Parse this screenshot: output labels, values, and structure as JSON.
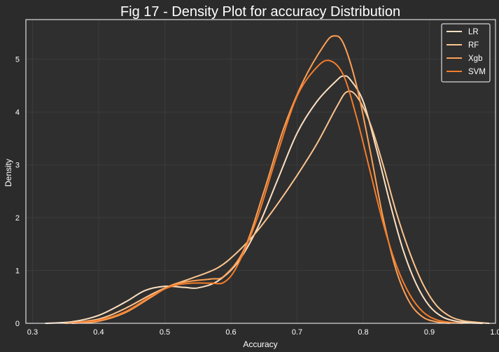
{
  "chart_data": {
    "type": "line",
    "title": "Fig 17 - Density Plot for accuracy Distribution",
    "xlabel": "Accuracy",
    "ylabel": "Density",
    "xlim": [
      0.29,
      1.0
    ],
    "ylim": [
      0,
      5.75
    ],
    "xticks": [
      0.3,
      0.4,
      0.5,
      0.6,
      0.7,
      0.8,
      0.9,
      1.0
    ],
    "xtick_labels": [
      "0.3",
      "0.4",
      "0.5",
      "0.6",
      "0.7",
      "0.8",
      "0.9",
      "1.0"
    ],
    "yticks": [
      0,
      1,
      2,
      3,
      4,
      5
    ],
    "ytick_labels": [
      "0",
      "1",
      "2",
      "3",
      "4",
      "5"
    ],
    "grid": true,
    "legend_position": "top-right",
    "colors": {
      "background": "#2b2b2b",
      "plot_bg": "#2f2f2f",
      "grid": "#3c3c3c",
      "text": "#ffffff"
    },
    "series": [
      {
        "name": "LR",
        "color": "#fde0c2",
        "points": [
          [
            0.32,
            0.0
          ],
          [
            0.36,
            0.03
          ],
          [
            0.4,
            0.15
          ],
          [
            0.44,
            0.4
          ],
          [
            0.47,
            0.62
          ],
          [
            0.5,
            0.7
          ],
          [
            0.53,
            0.68
          ],
          [
            0.55,
            0.67
          ],
          [
            0.58,
            0.8
          ],
          [
            0.61,
            1.15
          ],
          [
            0.64,
            1.8
          ],
          [
            0.67,
            2.7
          ],
          [
            0.7,
            3.6
          ],
          [
            0.73,
            4.2
          ],
          [
            0.76,
            4.6
          ],
          [
            0.77,
            4.68
          ],
          [
            0.78,
            4.62
          ],
          [
            0.8,
            4.2
          ],
          [
            0.82,
            3.3
          ],
          [
            0.84,
            2.3
          ],
          [
            0.86,
            1.4
          ],
          [
            0.88,
            0.75
          ],
          [
            0.9,
            0.33
          ],
          [
            0.92,
            0.12
          ],
          [
            0.94,
            0.04
          ],
          [
            0.96,
            0.01
          ],
          [
            0.98,
            0.0
          ]
        ]
      },
      {
        "name": "RF",
        "color": "#fdc48e",
        "points": [
          [
            0.35,
            0.0
          ],
          [
            0.4,
            0.08
          ],
          [
            0.44,
            0.28
          ],
          [
            0.48,
            0.55
          ],
          [
            0.51,
            0.72
          ],
          [
            0.54,
            0.85
          ],
          [
            0.58,
            1.05
          ],
          [
            0.61,
            1.35
          ],
          [
            0.64,
            1.75
          ],
          [
            0.67,
            2.25
          ],
          [
            0.7,
            2.8
          ],
          [
            0.73,
            3.4
          ],
          [
            0.76,
            4.1
          ],
          [
            0.775,
            4.38
          ],
          [
            0.79,
            4.3
          ],
          [
            0.81,
            3.8
          ],
          [
            0.83,
            3.0
          ],
          [
            0.85,
            2.1
          ],
          [
            0.87,
            1.35
          ],
          [
            0.89,
            0.75
          ],
          [
            0.91,
            0.35
          ],
          [
            0.93,
            0.14
          ],
          [
            0.95,
            0.05
          ],
          [
            0.97,
            0.02
          ],
          [
            0.99,
            0.0
          ]
        ]
      },
      {
        "name": "Xgb",
        "color": "#fda055",
        "points": [
          [
            0.36,
            0.0
          ],
          [
            0.4,
            0.04
          ],
          [
            0.44,
            0.2
          ],
          [
            0.48,
            0.5
          ],
          [
            0.51,
            0.72
          ],
          [
            0.54,
            0.8
          ],
          [
            0.57,
            0.84
          ],
          [
            0.59,
            0.9
          ],
          [
            0.62,
            1.4
          ],
          [
            0.65,
            2.5
          ],
          [
            0.68,
            3.7
          ],
          [
            0.71,
            4.6
          ],
          [
            0.74,
            5.25
          ],
          [
            0.755,
            5.44
          ],
          [
            0.77,
            5.3
          ],
          [
            0.79,
            4.5
          ],
          [
            0.81,
            3.3
          ],
          [
            0.83,
            2.0
          ],
          [
            0.85,
            1.0
          ],
          [
            0.87,
            0.4
          ],
          [
            0.89,
            0.12
          ],
          [
            0.91,
            0.03
          ],
          [
            0.93,
            0.0
          ]
        ]
      },
      {
        "name": "SVM",
        "color": "#f47c2a",
        "points": [
          [
            0.35,
            0.0
          ],
          [
            0.4,
            0.06
          ],
          [
            0.44,
            0.22
          ],
          [
            0.48,
            0.52
          ],
          [
            0.51,
            0.7
          ],
          [
            0.54,
            0.76
          ],
          [
            0.57,
            0.76
          ],
          [
            0.59,
            0.78
          ],
          [
            0.61,
            1.1
          ],
          [
            0.64,
            2.0
          ],
          [
            0.67,
            3.2
          ],
          [
            0.7,
            4.3
          ],
          [
            0.73,
            4.85
          ],
          [
            0.75,
            4.97
          ],
          [
            0.77,
            4.7
          ],
          [
            0.79,
            3.9
          ],
          [
            0.81,
            2.9
          ],
          [
            0.83,
            1.9
          ],
          [
            0.85,
            1.1
          ],
          [
            0.87,
            0.55
          ],
          [
            0.89,
            0.22
          ],
          [
            0.91,
            0.07
          ],
          [
            0.93,
            0.02
          ],
          [
            0.95,
            0.0
          ]
        ]
      }
    ]
  }
}
